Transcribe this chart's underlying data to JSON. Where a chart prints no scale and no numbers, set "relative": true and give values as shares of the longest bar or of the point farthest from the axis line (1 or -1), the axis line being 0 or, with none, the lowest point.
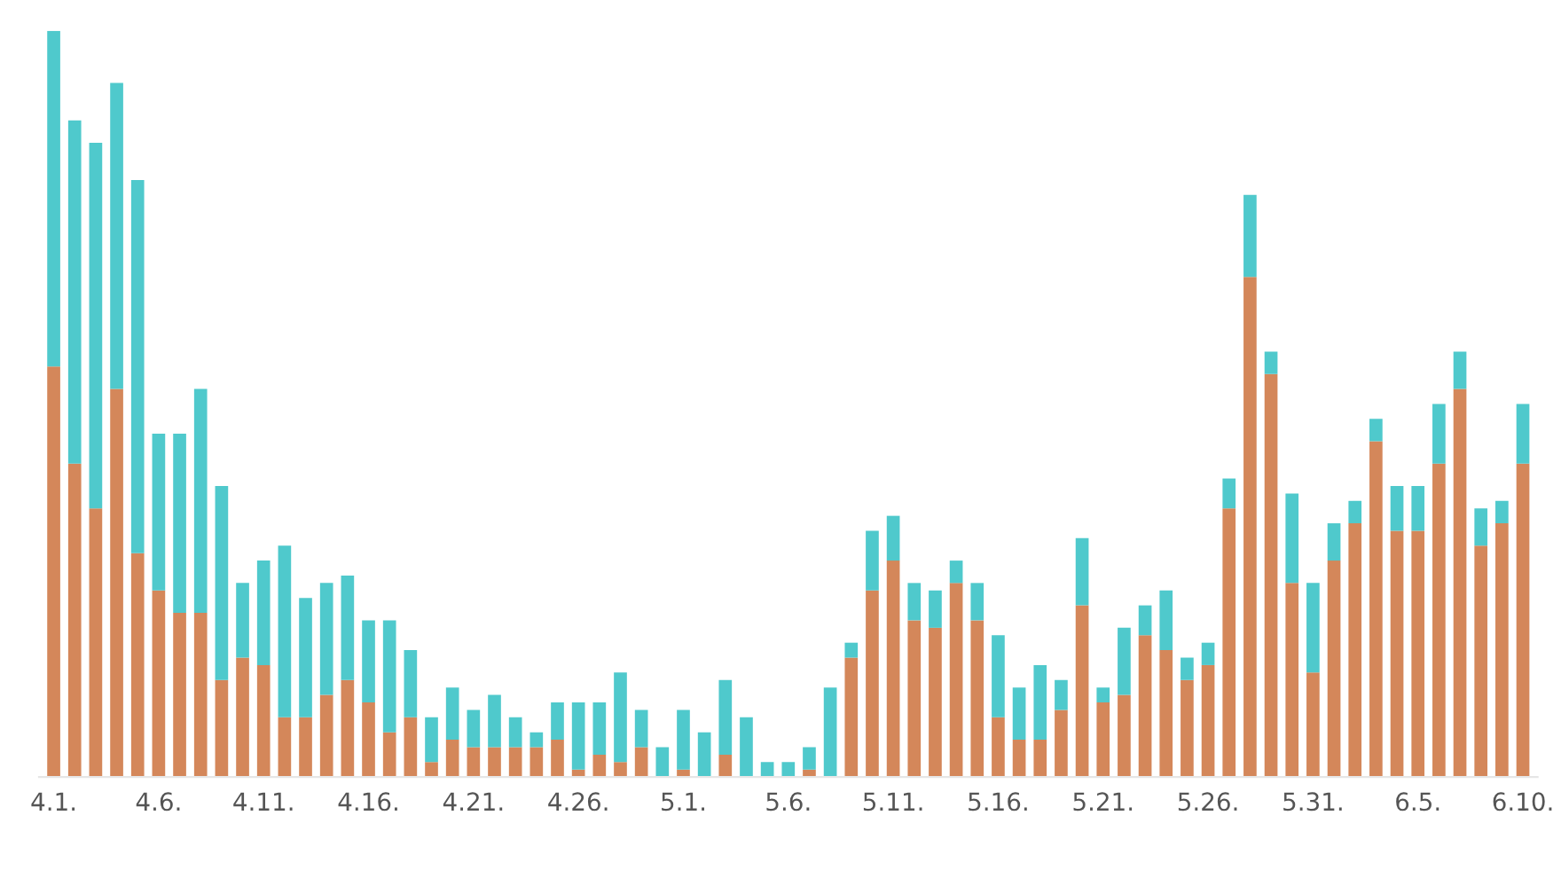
{
  "chart_data": {
    "type": "bar",
    "stacked": true,
    "relative": true,
    "categories": [
      "4.1.",
      null,
      null,
      null,
      null,
      "4.6.",
      null,
      null,
      null,
      null,
      "4.11.",
      null,
      null,
      null,
      null,
      "4.16.",
      null,
      null,
      null,
      null,
      "4.21.",
      null,
      null,
      null,
      null,
      "4.26.",
      null,
      null,
      null,
      null,
      "5.1.",
      null,
      null,
      null,
      null,
      "5.6.",
      null,
      null,
      null,
      null,
      "5.11.",
      null,
      null,
      null,
      null,
      "5.16.",
      null,
      null,
      null,
      null,
      "5.21.",
      null,
      null,
      null,
      null,
      "5.26.",
      null,
      null,
      null,
      null,
      "5.31.",
      null,
      null,
      null,
      null,
      "6.5.",
      null,
      null,
      null,
      null,
      "6.10."
    ],
    "series": [
      {
        "color": "#d4875a",
        "values": [
          0.55,
          0.42,
          0.36,
          0.52,
          0.3,
          0.25,
          0.22,
          0.22,
          0.13,
          0.16,
          0.15,
          0.08,
          0.08,
          0.11,
          0.13,
          0.1,
          0.06,
          0.08,
          0.02,
          0.05,
          0.04,
          0.04,
          0.04,
          0.04,
          0.05,
          0.01,
          0.03,
          0.02,
          0.04,
          0,
          0.01,
          0,
          0.03,
          0,
          0,
          0,
          0.01,
          0,
          0.16,
          0.25,
          0.29,
          0.21,
          0.2,
          0.26,
          0.21,
          0.08,
          0.05,
          0.05,
          0.09,
          0.23,
          0.1,
          0.11,
          0.19,
          0.17,
          0.13,
          0.15,
          0.36,
          0.67,
          0.54,
          0.26,
          0.14,
          0.29,
          0.34,
          0.45,
          0.33,
          0.33,
          0.42,
          0.52,
          0.31,
          0.34,
          0.42
        ]
      },
      {
        "color": "#4fc9cc",
        "values": [
          0.45,
          0.46,
          0.49,
          0.41,
          0.5,
          0.21,
          0.24,
          0.3,
          0.26,
          0.1,
          0.14,
          0.23,
          0.16,
          0.15,
          0.14,
          0.11,
          0.15,
          0.09,
          0.06,
          0.07,
          0.05,
          0.07,
          0.04,
          0.02,
          0.05,
          0.09,
          0.07,
          0.12,
          0.05,
          0.04,
          0.08,
          0.06,
          0.1,
          0.08,
          0.02,
          0.02,
          0.03,
          0.12,
          0.02,
          0.08,
          0.06,
          0.05,
          0.05,
          0.03,
          0.05,
          0.11,
          0.07,
          0.1,
          0.04,
          0.09,
          0.02,
          0.09,
          0.04,
          0.08,
          0.03,
          0.03,
          0.04,
          0.11,
          0.03,
          0.12,
          0.12,
          0.05,
          0.03,
          0.03,
          0.06,
          0.06,
          0.08,
          0.05,
          0.05,
          0.03,
          0.08
        ]
      }
    ]
  }
}
